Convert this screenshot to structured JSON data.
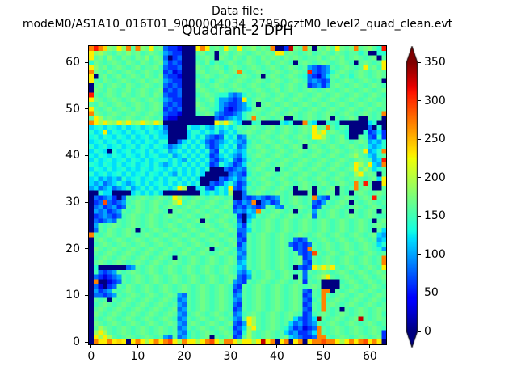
{
  "header": {
    "data_file_label": "Data file: modeM0/AS1A10_016T01_9000004034_27950cztM0_level2_quad_clean.evt"
  },
  "chart_data": {
    "type": "heatmap",
    "title": "Quadrant 2 DPH",
    "xlabel": "",
    "ylabel": "",
    "colormap": "jet",
    "vmin": 0,
    "vmax": 350,
    "grid_size": 64,
    "x_range": [
      -0.5,
      63.5
    ],
    "y_range": [
      -0.5,
      63.5
    ],
    "xticks": [
      0,
      10,
      20,
      30,
      40,
      50,
      60
    ],
    "yticks": [
      0,
      10,
      20,
      30,
      40,
      50,
      60
    ],
    "colorbar": {
      "ticks": [
        0,
        50,
        100,
        150,
        200,
        250,
        300,
        350
      ],
      "extend": "both",
      "under_color": "#000080",
      "over_color": "#800000",
      "position": "right"
    },
    "value_step": 10,
    "value_chars": "0123456789abcdefghijklmnopqrstuvwxyz",
    "encoding_note": "Each row is 64 chars, top row = detector y 63. Cell value (counts) = char index in value_chars times value_step. Values estimated from pixel colors.",
    "rows_top_to_bottom": [
      "rvroihnirgrihngh8663000nrnghgnhgnghighgr006xhgrh0hgignhghrghigev",
      "nijhgfhgighfghgfa866000ghfg0ghfghgfghghgnnghgfghfghgfhgfggeg00ee",
      "nghfigfhgfhgifhg8068000fghg0hgfhgfhgfhghgfhghgfgghfghghfghgfgh0g",
      "ehgfghgfhgfhgfgha686000gfhegfghgfghgfghfghgf0ghgfghgfghgf0ghgfgn",
      "nighfghgfghfgghf8668000hgfghgeghgfghgfghgfghgfga868agfghgfgnghfn",
      "rhgfhgfghgfghgfg6836000ghfgghfghrgfghgfghgfghgfv868aeghgfghgfghg",
      "n0ghfghfghgfhgfh8663000fghgfghgfghgfg0ghgfghgfe8638cghfgeghgfghg",
      "ngfhgfghgfghfghga866000gfgeghgfghgfghgfghgfghgf8a868gfghgfghgfg0",
      "0ghfghgfhgfghgfg8686000hgfghgfghgfghgfghgfghgfg68a6aghgfghgfghgf",
      "0hgfhgfghfghgfgh6868000ghgfghgfghgfghgfghfghgfghgfghgfghgfghgfgh",
      "vgfghgfhgfghgfhg8668000fghgfeea8aegfghgfghgfghgfghgfghgfghgfghgf",
      "nhgfghgfghgfghgfa866000gfgheaa868neghgfghgfghgfghgfghgfghgfghgfg",
      "gfhgfghgfghgfghg8686000hgfgea8668aeg0ghgfghgfghgfghgfghgfghgfghg",
      "ngfghfghgfhgfghg6868000ghgfea6368acghgfghgfghgfghgfghgfghgfghgfg",
      "rhgfghgfghgfghgf8663000fghga8668aeghgfghgfghgfghgfghgfghgfghgfgr",
      "gnjghgfghgfghgfg63300000000868acaegrghgfgh00gfghgfgh0gfghg00gfg0",
      "rnjnjinjnijnjinj00000000000njnhec00ef0000ece00rec00efe000000ce00",
      "cdecedcecdecdecd80000eccecaececegfghgfghfghgfghgnghrgegf000080e0",
      "ecdncedcecdecedca0000ceececeacecfghgfghgfghgfghgnjnghgfe000e68c6",
      "decedcedcecdececc0000cecea868ece8agfghgfghgfghgfnnjgfghe00gf86e6",
      "cdecdecdecdcedcee008cecec868aceca8egfghgfghgfghgfghgfghgfghgacae",
      "ecdecdecdecedcedc8acececea68cece8afghgfghgfghg0ghgfghgfghgfgcace",
      "cedc0ecdecdececdeacececece86ececacgfghgfghgfghgfghgfghgfghgnacer",
      "dcedcedcedcecdecceacececec68ceca8cfghgfghgfghgfghgfghgfghjgfcaeg",
      "cecdecdecedcecdeececaecece86ace86aegfghgfghgfghgfghgfghgfghgfacv",
      "edcedcecdecdececacecececec68eca68cgfghgfghgfghgfghgfghgfgnjgncar",
      "cedcecdecdcedcedcecececece000868a8fghgfg0gfghgfghgfghgfghngjgceg",
      "ecdecdececdecedcecaececec000008a86egfghgfghgfghgfghgfghgfjnghg0g",
      "cdacacaecdecdececeececec000086ac8agfghgfghgfghgfghgfghgfghgfghcn",
      "cac8acecacececdecececece00868cea68egfghgfghgfghgfghgfghgfrgvg00n",
      "ac8ac8aceacececeecenj00ce86cecn86agfghgfghgf0ghg0gfgh0gfgrghg00g",
      "00ecc0000cececec00000000ecececj008fghgfghgfg000g0fghg0gf0ghgfghg",
      "0868a608gfghgfghgfnjgfghgfghgfg00868a868agfghgfgra86gfghgfghgvgf",
      "068t868afghgfghgfgjnfghgfghgfgh86a8r08a68gfghgfg86agfghg0gfghgfg",
      "08a68a68gfhgfghfghgfghgfghgfghg686a868gfa8gfghgf68gfghgfghgfghgf",
      "0a8a68agfghgfghgf0ghgfghgfghgfg8a8cargfghgfg0gfgagfghgfg0gfghg0g",
      "068a868fghgfghgfghgfghgfghgfghgf60acgfghgfghgfgh8gfghgfghgfghgff",
      "0868a8gfghgfghgfgfghgfgh0gfghgfg80cgfghgfghgfghgfghgfghgfghgf0gh",
      "0agfghgfghgfghgfghgfghgfghgfghgfa6egfghgfghgfghgfghgfghgfghgfghg",
      "08gfhgfghg0gfghgfghgfghgfghgfghg88cgfghgfghgfghgfghgfghgfghgf0gc",
      "rgfghgfghgfghgfghgfghgfghgfghgfg68gfghgfghgfghgfghgfghgfghgfghca",
      "0ghgfghgfghgfghgfghgfghgfghgfghg86gfghgfghgf868gfghgfghgfghgfgac",
      "0fghgfghgfghgfghgfghgfghgfghgfgh6agfghgfghg86868gfghgfghgfghgfce",
      "0hgfghgfghgfghgfghgfghgfgh0fghgf8agfghgfghgf686rgfghgfghgfghgfea",
      "0gfghgfghgfghgfghgfghgfghgfghgfga8gfghgfghgfg868tgfghgfghgfghgfg",
      "0fghgfghgfghgfghgf0gfghgfghgfghg8agfghgfghgfgh68gfghgfghgfghgfgr",
      "0ghgfghgfghgfghgfghgfghgfghgfghgacgfghgfghgfgh86gfghgfghgfghgfgr",
      "0e0000008agfghgfghgfghgfghgfghgfcagfghgfghgf0868njnjngfghgfghgfn",
      "0f868agfghgfghgfghgfghgfghgfghgfa8cgfghgfghgfg8gfghgfghgfghgfghg",
      "086368agfghgfghgfghgfghgfghgfghg86agfghgfghg0g8fghjngfghgfghgfgh",
      "0r00368gfghgfghgfghgfghgfghgfgha86gfghgfghgfgh6gfg0000fghgfghgfg",
      "083068gfhgfghgfghgfghgfghgfghgf86gfghgfghgfghgfghg0000gfghgfghgf",
      "0a68agfghgfghgfghgfghgfghgfghgf68gfghgfghgfghg86gfrr0gfghgfghgfg",
      "08868agfghgfghgfghga8gfghgfghgf8agfghgfghgfghg68gfrgfghgfghgfghg",
      "0gfg0gfghgfghgfghgf8agfghgfghgfa8gfghgfghgfghg86fgrfghgfghgfghgf",
      "0fghgfghgfghgfghgfga8gfghgfghgf86gfghgfghgfghg68gfrghgfghgfghgfg",
      "0ghgfghgfghgfghgfgh8agfghgfghgf68gfghgfghgfghg86gfrgfg0gfghgfghg",
      "0hgfghgfghgfghgfghga8fghgfghgfg8afghgfghgfghgf68fghgfghgfghgfghf",
      "0gfghgfghgfghgfghgf8agfghgfghgfa8gnjgfghgfghc868czgfghgfghxgfghg",
      "0hgfghgfghgfghgfghga8ghgfghgfgh86anjgfghgfgc8a68agfghgfghgfghgfg",
      "0gjhgfghgfghgfghgfg8agfghgfghgf68cjngfghgfea68368rgfghgfghgfghgf",
      "0jnjgfghgfghgfghgfga8egfghgfghg86ejgfghgfgc8a668crgfghgfghgfghg6",
      "0njnjgfghgfghgfga8g8aegfgh0gfgh68gjgfghgfghca8668rrgfghgfghgfgh6",
      "0rnnrnon0nrnjnrnrtnjrnnjnrtnjrrnjnnjnxnr0nr0nr0nrrtrrnjnrnrtnrn0"
    ]
  }
}
